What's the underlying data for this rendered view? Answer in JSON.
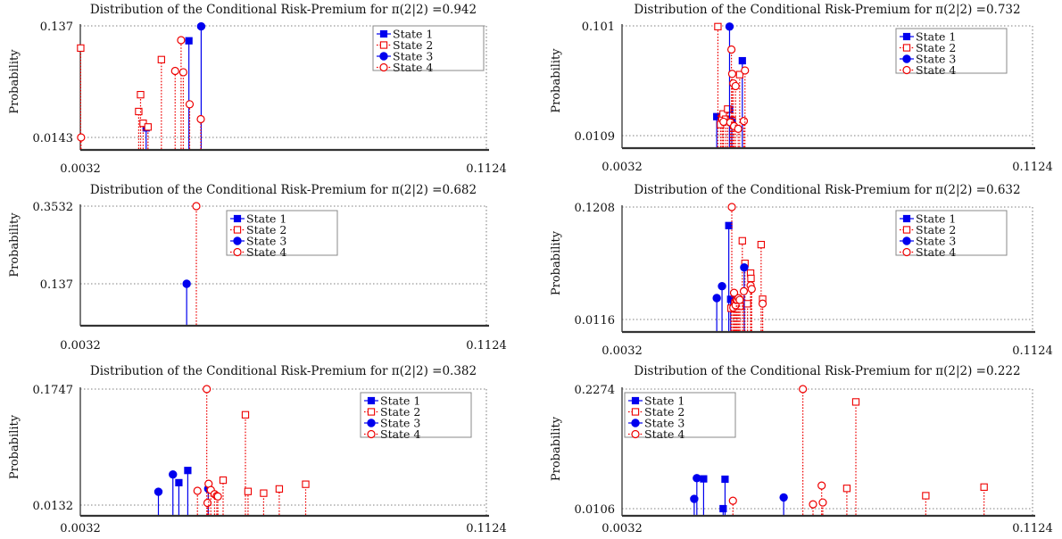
{
  "chart_data": [
    {
      "type": "stem",
      "title": "Distribution of the Conditional Risk-Premium for π(2|2) =0.942",
      "ylabel": "Probability",
      "xlim": [
        0.0032,
        0.1124
      ],
      "ylim": [
        0.0143,
        0.137
      ],
      "xticklabels": [
        "0.0032",
        "0.1124"
      ],
      "yticklabels": [
        "0.0143",
        "0.137"
      ],
      "grid": true,
      "legend_position": "top-right",
      "series": [
        {
          "name": "State 1",
          "color": "#0000ee",
          "line": "solid",
          "marker": "square-filled",
          "points": [
            [
              0.0209,
              0.0248
            ],
            [
              0.0324,
              0.1206
            ]
          ]
        },
        {
          "name": "State 2",
          "color": "#ee0000",
          "line": "dotted",
          "marker": "square-open",
          "points": [
            [
              0.0033,
              0.1126
            ],
            [
              0.0189,
              0.0428
            ],
            [
              0.0194,
              0.0613
            ],
            [
              0.0201,
              0.0299
            ],
            [
              0.0214,
              0.0258
            ],
            [
              0.025,
              0.0999
            ]
          ]
        },
        {
          "name": "State 3",
          "color": "#0000ee",
          "line": "solid",
          "marker": "circle-filled",
          "points": [
            [
              0.0357,
              0.1364
            ]
          ]
        },
        {
          "name": "State 4",
          "color": "#ee0000",
          "line": "dotted",
          "marker": "circle-open",
          "points": [
            [
              0.0034,
              0.0143
            ],
            [
              0.0287,
              0.0874
            ],
            [
              0.0303,
              0.1213
            ],
            [
              0.0309,
              0.086
            ],
            [
              0.0326,
              0.0508
            ],
            [
              0.0356,
              0.0344
            ]
          ]
        }
      ]
    },
    {
      "type": "stem",
      "title": "Distribution of the Conditional Risk-Premium for π(2|2) =0.732",
      "ylabel": "Probability",
      "xlim": [
        0.0032,
        0.1124
      ],
      "ylim": [
        0.0109,
        0.101
      ],
      "xticklabels": [
        "0.0032",
        "0.1124"
      ],
      "yticklabels": [
        "0.0109",
        "0.101"
      ],
      "grid": true,
      "legend_position": "top-right",
      "series": [
        {
          "name": "State 1",
          "color": "#0000ee",
          "line": "solid",
          "marker": "square-filled",
          "points": [
            [
              0.0284,
              0.0265
            ],
            [
              0.0318,
              0.0324
            ],
            [
              0.0352,
              0.0724
            ]
          ]
        },
        {
          "name": "State 2",
          "color": "#ee0000",
          "line": "dotted",
          "marker": "square-open",
          "points": [
            [
              0.0287,
              0.1004
            ],
            [
              0.0294,
              0.02
            ],
            [
              0.0298,
              0.0253
            ],
            [
              0.0301,
              0.0287
            ],
            [
              0.0308,
              0.0244
            ],
            [
              0.0313,
              0.0327
            ],
            [
              0.0321,
              0.0237
            ],
            [
              0.0325,
              0.0233
            ],
            [
              0.0345,
              0.061
            ]
          ]
        },
        {
          "name": "State 3",
          "color": "#0000ee",
          "line": "solid",
          "marker": "circle-filled",
          "points": [
            [
              0.0318,
              0.1004
            ],
            [
              0.0324,
              0.0223
            ]
          ]
        },
        {
          "name": "State 4",
          "color": "#ee0000",
          "line": "dotted",
          "marker": "circle-open",
          "points": [
            [
              0.0302,
              0.0223
            ],
            [
              0.032,
              0.0218
            ],
            [
              0.0323,
              0.0816
            ],
            [
              0.0325,
              0.0616
            ],
            [
              0.0328,
              0.0538
            ],
            [
              0.033,
              0.0187
            ],
            [
              0.0334,
              0.0516
            ],
            [
              0.0341,
              0.0165
            ],
            [
              0.0356,
              0.0229
            ],
            [
              0.0359,
              0.0644
            ]
          ]
        }
      ]
    },
    {
      "type": "stem",
      "title": "Distribution of the Conditional Risk-Premium for π(2|2) =0.682",
      "ylabel": "Probability",
      "xlim": [
        0.0032,
        0.1124
      ],
      "ylim": [
        0.137,
        0.3532
      ],
      "xticklabels": [
        "0.0032",
        "0.1124"
      ],
      "yticklabels": [
        "0.137",
        "0.3532"
      ],
      "grid": true,
      "legend_position": "top-right",
      "series": [
        {
          "name": "State 1",
          "color": "#0000ee",
          "line": "solid",
          "marker": "square-filled",
          "points": []
        },
        {
          "name": "State 2",
          "color": "#ee0000",
          "line": "dotted",
          "marker": "square-open",
          "points": []
        },
        {
          "name": "State 3",
          "color": "#0000ee",
          "line": "solid",
          "marker": "circle-filled",
          "points": [
            [
              0.0318,
              0.137
            ]
          ]
        },
        {
          "name": "State 4",
          "color": "#ee0000",
          "line": "dotted",
          "marker": "circle-open",
          "points": [
            [
              0.0344,
              0.3532
            ]
          ]
        }
      ]
    },
    {
      "type": "stem",
      "title": "Distribution of the Conditional Risk-Premium for π(2|2) =0.632",
      "ylabel": "Probability",
      "xlim": [
        0.0032,
        0.1124
      ],
      "ylim": [
        0.0116,
        0.1208
      ],
      "xticklabels": [
        "0.0032",
        "0.1124"
      ],
      "yticklabels": [
        "0.0116",
        "0.1208"
      ],
      "grid": true,
      "legend_position": "top-right",
      "series": [
        {
          "name": "State 1",
          "color": "#0000ee",
          "line": "solid",
          "marker": "square-filled",
          "points": [
            [
              0.0316,
              0.1028
            ],
            [
              0.0321,
              0.0312
            ]
          ]
        },
        {
          "name": "State 2",
          "color": "#ee0000",
          "line": "dotted",
          "marker": "square-open",
          "points": [
            [
              0.0322,
              0.0225
            ],
            [
              0.0332,
              0.0268
            ],
            [
              0.0339,
              0.0287
            ],
            [
              0.0346,
              0.0244
            ],
            [
              0.0352,
              0.088
            ],
            [
              0.0359,
              0.0661
            ],
            [
              0.0366,
              0.0269
            ],
            [
              0.0374,
              0.0566
            ],
            [
              0.0375,
              0.0515
            ],
            [
              0.0402,
              0.0843
            ],
            [
              0.0406,
              0.0313
            ]
          ]
        },
        {
          "name": "State 3",
          "color": "#0000ee",
          "line": "solid",
          "marker": "circle-filled",
          "points": [
            [
              0.0284,
              0.0324
            ],
            [
              0.0298,
              0.0439
            ],
            [
              0.0357,
              0.0621
            ]
          ]
        },
        {
          "name": "State 4",
          "color": "#ee0000",
          "line": "dotted",
          "marker": "circle-open",
          "points": [
            [
              0.0324,
              0.1208
            ],
            [
              0.0328,
              0.0231
            ],
            [
              0.033,
              0.0375
            ],
            [
              0.0334,
              0.0255
            ],
            [
              0.0336,
              0.0305
            ],
            [
              0.0338,
              0.0307
            ],
            [
              0.0342,
              0.0323
            ],
            [
              0.0345,
              0.0306
            ],
            [
              0.0356,
              0.039
            ],
            [
              0.0374,
              0.0446
            ],
            [
              0.0377,
              0.0412
            ],
            [
              0.0406,
              0.027
            ]
          ]
        }
      ]
    },
    {
      "type": "stem",
      "title": "Distribution of the Conditional Risk-Premium for π(2|2) =0.382",
      "ylabel": "Probability",
      "xlim": [
        0.0032,
        0.1124
      ],
      "ylim": [
        0.0132,
        0.1747
      ],
      "xticklabels": [
        "0.0032",
        "0.1124"
      ],
      "yticklabels": [
        "0.0132",
        "0.1747"
      ],
      "grid": true,
      "legend_position": "top-right",
      "series": [
        {
          "name": "State 1",
          "color": "#0000ee",
          "line": "solid",
          "marker": "square-filled",
          "points": [
            [
              0.0297,
              0.0444
            ],
            [
              0.0321,
              0.0614
            ]
          ]
        },
        {
          "name": "State 2",
          "color": "#ee0000",
          "line": "dotted",
          "marker": "square-open",
          "points": [
            [
              0.0416,
              0.0479
            ],
            [
              0.0476,
              0.1389
            ],
            [
              0.0483,
              0.0322
            ],
            [
              0.0525,
              0.0298
            ],
            [
              0.0567,
              0.0357
            ],
            [
              0.0638,
              0.0422
            ]
          ]
        },
        {
          "name": "State 3",
          "color": "#0000ee",
          "line": "solid",
          "marker": "circle-filled",
          "points": [
            [
              0.0242,
              0.0318
            ],
            [
              0.0281,
              0.0558
            ],
            [
              0.0376,
              0.0359
            ]
          ]
        },
        {
          "name": "State 4",
          "color": "#ee0000",
          "line": "dotted",
          "marker": "circle-open",
          "points": [
            [
              0.0347,
              0.0331
            ],
            [
              0.0372,
              0.1747
            ],
            [
              0.0374,
              0.0163
            ],
            [
              0.0377,
              0.0429
            ],
            [
              0.0383,
              0.0342
            ],
            [
              0.0393,
              0.0284
            ],
            [
              0.0399,
              0.0259
            ],
            [
              0.0402,
              0.0252
            ]
          ]
        }
      ]
    },
    {
      "type": "stem",
      "title": "Distribution of the Conditional Risk-Premium for π(2|2) =0.222",
      "ylabel": "Probability",
      "xlim": [
        0.0032,
        0.1124
      ],
      "ylim": [
        0.0106,
        0.2274
      ],
      "xticklabels": [
        "0.0032",
        "0.1124"
      ],
      "yticklabels": [
        "0.0106",
        "0.2274"
      ],
      "grid": true,
      "legend_position": "top-left",
      "series": [
        {
          "name": "State 1",
          "color": "#0000ee",
          "line": "solid",
          "marker": "square-filled",
          "points": [
            [
              0.0249,
              0.0646
            ],
            [
              0.0301,
              0.0106
            ],
            [
              0.0306,
              0.064
            ]
          ]
        },
        {
          "name": "State 2",
          "color": "#ee0000",
          "line": "dotted",
          "marker": "square-open",
          "points": [
            [
              0.063,
              0.0474
            ],
            [
              0.0654,
              0.2041
            ],
            [
              0.084,
              0.0341
            ],
            [
              0.0995,
              0.0497
            ]
          ]
        },
        {
          "name": "State 3",
          "color": "#0000ee",
          "line": "solid",
          "marker": "circle-filled",
          "points": [
            [
              0.0224,
              0.0283
            ],
            [
              0.0231,
              0.0659
            ],
            [
              0.0462,
              0.031
            ]
          ]
        },
        {
          "name": "State 4",
          "color": "#ee0000",
          "line": "dotted",
          "marker": "circle-open",
          "points": [
            [
              0.0327,
              0.025
            ],
            [
              0.0513,
              0.2274
            ],
            [
              0.054,
              0.0185
            ],
            [
              0.0563,
              0.0525
            ],
            [
              0.0566,
              0.0218
            ]
          ]
        }
      ]
    }
  ]
}
